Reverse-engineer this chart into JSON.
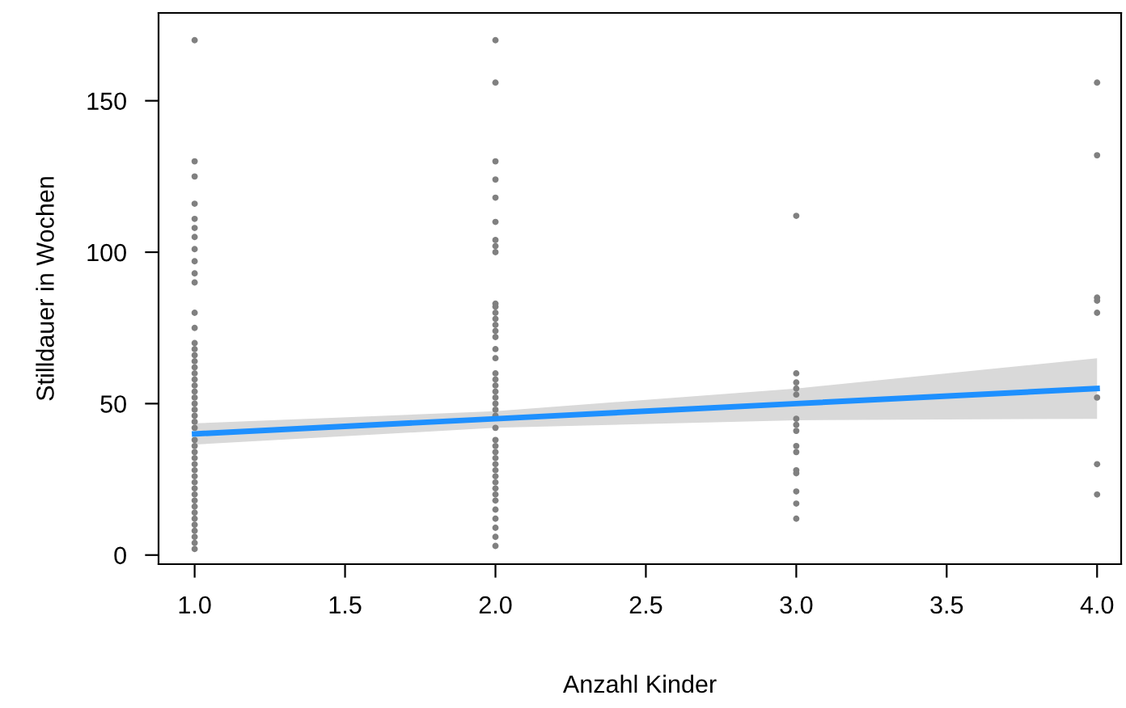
{
  "chart_data": {
    "type": "scatter",
    "xlabel": "Anzahl Kinder",
    "ylabel": "Stilldauer in Wochen",
    "xlim": [
      0.88,
      4.08
    ],
    "ylim": [
      -3,
      179
    ],
    "xticks": [
      {
        "value": 1,
        "label": "1.0"
      },
      {
        "value": 1.5,
        "label": "1.5"
      },
      {
        "value": 2,
        "label": "2.0"
      },
      {
        "value": 2.5,
        "label": "2.5"
      },
      {
        "value": 3,
        "label": "3.0"
      },
      {
        "value": 3.5,
        "label": "3.5"
      },
      {
        "value": 4,
        "label": "4.0"
      }
    ],
    "yticks": [
      0,
      50,
      100,
      150
    ],
    "grid": false,
    "marker": "circle",
    "series": [
      {
        "color": "#808080",
        "x": [
          1,
          1,
          1,
          1,
          1,
          1,
          1,
          1,
          1,
          1,
          1,
          1,
          1,
          1,
          1,
          1,
          1,
          1,
          1,
          1,
          1,
          1,
          1,
          1,
          1,
          1,
          1,
          1,
          1,
          1,
          1,
          1,
          1,
          1,
          1,
          1,
          1,
          1,
          1,
          1,
          1,
          1,
          1,
          1,
          1,
          1,
          1
        ],
        "values": [
          170,
          130,
          125,
          116,
          111,
          108,
          105,
          101,
          97,
          93,
          90,
          80,
          75,
          70,
          68,
          66,
          64,
          62,
          60,
          58,
          56,
          54,
          52,
          50,
          48,
          46,
          44,
          42,
          38,
          36,
          34,
          32,
          30,
          28,
          26,
          24,
          22,
          20,
          18,
          16,
          14,
          12,
          10,
          8,
          6,
          4,
          2
        ]
      },
      {
        "color": "#808080",
        "x": [
          2,
          2,
          2,
          2,
          2,
          2,
          2,
          2,
          2,
          2,
          2,
          2,
          2,
          2,
          2,
          2,
          2,
          2,
          2,
          2,
          2,
          2,
          2,
          2,
          2,
          2,
          2,
          2,
          2,
          2,
          2,
          2,
          2,
          2,
          2,
          2,
          2,
          2,
          2,
          2,
          2,
          2,
          2
        ],
        "values": [
          170,
          156,
          130,
          124,
          118,
          110,
          104,
          102,
          100,
          83,
          82,
          80,
          78,
          76,
          74,
          72,
          68,
          65,
          60,
          58,
          56,
          54,
          52,
          50,
          48,
          46,
          42,
          38,
          36,
          34,
          32,
          30,
          28,
          26,
          24,
          22,
          20,
          18,
          15,
          12,
          9,
          6,
          3
        ]
      },
      {
        "color": "#808080",
        "x": [
          3,
          3,
          3,
          3,
          3,
          3,
          3,
          3,
          3,
          3,
          3,
          3,
          3,
          3,
          3
        ],
        "values": [
          112,
          60,
          57,
          55,
          53,
          45,
          43,
          41,
          36,
          34,
          28,
          27,
          21,
          17,
          12
        ]
      },
      {
        "color": "#808080",
        "x": [
          4,
          4,
          4,
          4,
          4,
          4,
          4,
          4
        ],
        "values": [
          156,
          132,
          85,
          84,
          80,
          52,
          30,
          20
        ]
      },
      {
        "type": "line",
        "color": "#1e90ff",
        "marker": "none",
        "x": [
          1,
          2,
          3,
          4
        ],
        "values": [
          40,
          45,
          50,
          55
        ],
        "lower": [
          36.5,
          42,
          44.5,
          45
        ],
        "upper": [
          43.5,
          47.5,
          55,
          65
        ]
      }
    ]
  }
}
